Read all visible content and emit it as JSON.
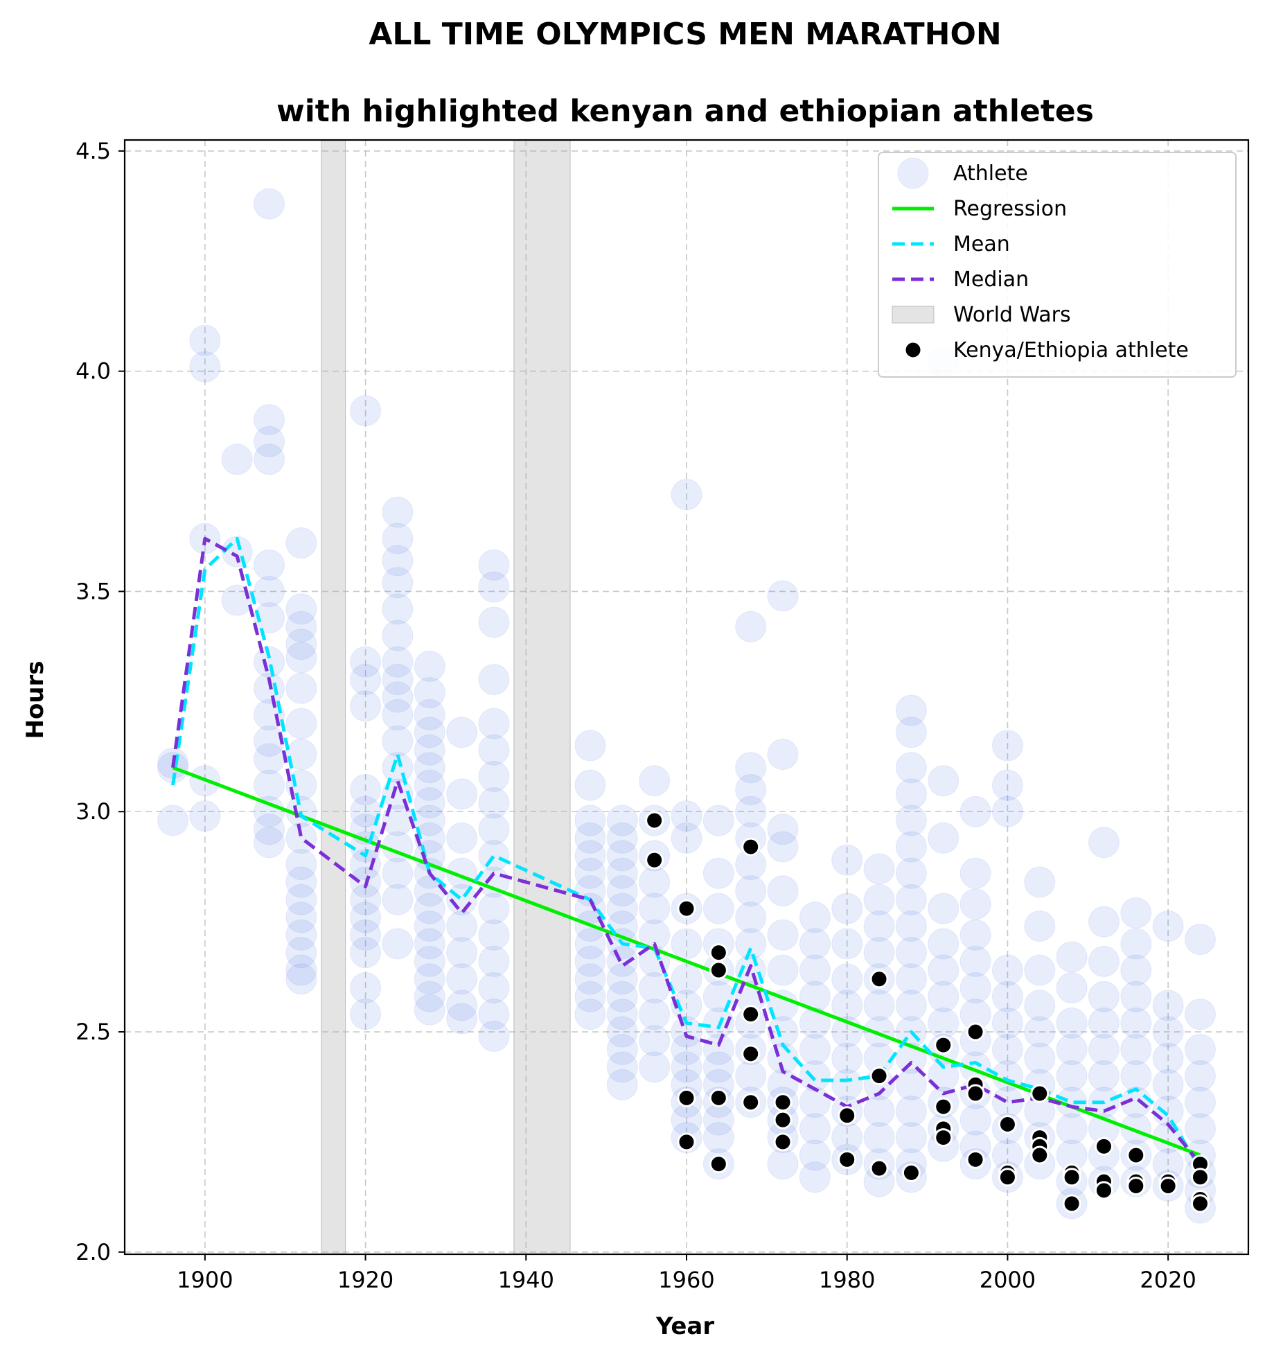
{
  "chart_data": {
    "type": "scatter",
    "title": "ALL TIME OLYMPICS MEN MARATHON",
    "subtitle": "with highlighted kenyan and ethiopian athletes",
    "xlabel": "Year",
    "ylabel": "Hours",
    "xlim": [
      1890,
      2030
    ],
    "ylim": [
      1.995,
      4.525
    ],
    "xticks": [
      1900,
      1920,
      1940,
      1960,
      1980,
      2000,
      2020
    ],
    "yticks": [
      2.0,
      2.5,
      3.0,
      3.5,
      4.0,
      4.5
    ],
    "xtick_labels": [
      "1900",
      "1920",
      "1940",
      "1960",
      "1980",
      "2000",
      "2020"
    ],
    "ytick_labels": [
      "2.0",
      "2.5",
      "3.0",
      "3.5",
      "4.0",
      "4.5"
    ],
    "grid": true,
    "legend_position": "top-right",
    "colors": {
      "athlete": "#4169e1",
      "regression": "#00ee00",
      "mean": "#00e5ff",
      "median": "#7b2fd6",
      "world_wars": "#d9d9d9",
      "kenya_ethiopia": "#000000"
    },
    "legend": [
      {
        "label": "Athlete",
        "kind": "athlete"
      },
      {
        "label": "Regression",
        "kind": "regression"
      },
      {
        "label": "Mean",
        "kind": "mean"
      },
      {
        "label": "Median",
        "kind": "median"
      },
      {
        "label": "World Wars",
        "kind": "world_wars"
      },
      {
        "label": "Kenya/Ethiopia athlete",
        "kind": "kenya_ethiopia"
      }
    ],
    "world_wars": [
      {
        "start": 1914.5,
        "end": 1917.5
      },
      {
        "start": 1938.5,
        "end": 1945.5
      }
    ],
    "regression": {
      "x": [
        1896,
        2024
      ],
      "y": [
        3.1,
        2.22
      ]
    },
    "mean": {
      "x": [
        1896,
        1900,
        1904,
        1908,
        1912,
        1920,
        1924,
        1928,
        1932,
        1936,
        1948,
        1952,
        1956,
        1960,
        1964,
        1968,
        1972,
        1976,
        1980,
        1984,
        1988,
        1992,
        1996,
        2000,
        2004,
        2008,
        2012,
        2016,
        2020,
        2024
      ],
      "y": [
        3.06,
        3.55,
        3.62,
        3.35,
        2.99,
        2.9,
        3.13,
        2.86,
        2.8,
        2.9,
        2.8,
        2.7,
        2.69,
        2.52,
        2.51,
        2.69,
        2.47,
        2.39,
        2.39,
        2.4,
        2.5,
        2.42,
        2.43,
        2.39,
        2.37,
        2.34,
        2.34,
        2.37,
        2.31,
        2.19
      ]
    },
    "median": {
      "x": [
        1896,
        1900,
        1904,
        1908,
        1912,
        1920,
        1924,
        1928,
        1932,
        1936,
        1948,
        1952,
        1956,
        1960,
        1964,
        1968,
        1972,
        1976,
        1980,
        1984,
        1988,
        1992,
        1996,
        2000,
        2004,
        2008,
        2012,
        2016,
        2020,
        2024
      ],
      "y": [
        3.1,
        3.62,
        3.58,
        3.3,
        2.94,
        2.83,
        3.07,
        2.86,
        2.77,
        2.86,
        2.8,
        2.65,
        2.7,
        2.49,
        2.47,
        2.65,
        2.41,
        2.37,
        2.33,
        2.36,
        2.43,
        2.36,
        2.38,
        2.34,
        2.35,
        2.33,
        2.32,
        2.35,
        2.29,
        2.2
      ]
    },
    "athlete_groups": [
      {
        "year": 1896,
        "values": [
          3.11,
          3.1,
          2.98
        ]
      },
      {
        "year": 1900,
        "values": [
          4.07,
          4.01,
          3.62,
          3.07,
          2.99
        ]
      },
      {
        "year": 1904,
        "values": [
          3.8,
          3.59,
          3.48
        ]
      },
      {
        "year": 1908,
        "values": [
          4.38,
          3.89,
          3.84,
          3.8,
          3.56,
          3.5,
          3.44,
          3.34,
          3.28,
          3.22,
          3.16,
          3.12,
          3.06,
          3.0,
          2.96,
          2.93
        ]
      },
      {
        "year": 1912,
        "values": [
          3.61,
          3.46,
          3.42,
          3.38,
          3.35,
          3.28,
          3.2,
          3.13,
          3.06,
          3.0,
          2.94,
          2.88,
          2.84,
          2.8,
          2.76,
          2.72,
          2.68,
          2.64,
          2.62
        ]
      },
      {
        "year": 1920,
        "values": [
          3.91,
          3.34,
          3.3,
          3.24,
          3.05,
          3.0,
          2.96,
          2.92,
          2.88,
          2.84,
          2.8,
          2.76,
          2.72,
          2.68,
          2.6,
          2.54
        ]
      },
      {
        "year": 1924,
        "values": [
          3.68,
          3.62,
          3.57,
          3.52,
          3.46,
          3.4,
          3.34,
          3.3,
          3.26,
          3.22,
          3.16,
          3.1,
          3.04,
          2.98,
          2.92,
          2.86,
          2.8,
          2.7
        ]
      },
      {
        "year": 1928,
        "values": [
          3.33,
          3.27,
          3.22,
          3.18,
          3.14,
          3.1,
          3.06,
          3.02,
          2.98,
          2.94,
          2.9,
          2.86,
          2.82,
          2.78,
          2.74,
          2.7,
          2.66,
          2.62,
          2.58,
          2.55
        ]
      },
      {
        "year": 1932,
        "values": [
          3.18,
          3.04,
          2.94,
          2.86,
          2.8,
          2.74,
          2.68,
          2.62,
          2.56,
          2.53
        ]
      },
      {
        "year": 1936,
        "values": [
          3.56,
          3.51,
          3.43,
          3.3,
          3.2,
          3.14,
          3.08,
          3.02,
          2.96,
          2.9,
          2.84,
          2.78,
          2.72,
          2.66,
          2.6,
          2.54,
          2.49
        ]
      },
      {
        "year": 1948,
        "values": [
          3.15,
          3.06,
          2.98,
          2.94,
          2.9,
          2.86,
          2.82,
          2.78,
          2.74,
          2.7,
          2.66,
          2.62,
          2.58,
          2.54
        ]
      },
      {
        "year": 1952,
        "values": [
          2.98,
          2.94,
          2.9,
          2.86,
          2.82,
          2.78,
          2.74,
          2.7,
          2.66,
          2.62,
          2.58,
          2.54,
          2.5,
          2.46,
          2.42,
          2.38
        ]
      },
      {
        "year": 1956,
        "values": [
          3.07,
          2.98,
          2.9,
          2.84,
          2.78,
          2.72,
          2.66,
          2.6,
          2.54,
          2.48,
          2.42
        ]
      },
      {
        "year": 1960,
        "values": [
          3.72,
          2.99,
          2.94,
          2.78,
          2.7,
          2.62,
          2.56,
          2.5,
          2.46,
          2.42,
          2.38,
          2.34,
          2.3,
          2.26
        ]
      },
      {
        "year": 1964,
        "values": [
          2.98,
          2.86,
          2.78,
          2.7,
          2.64,
          2.58,
          2.52,
          2.46,
          2.42,
          2.38,
          2.34,
          2.3,
          2.26,
          2.2
        ]
      },
      {
        "year": 1968,
        "values": [
          3.42,
          3.1,
          3.05,
          3.0,
          2.94,
          2.88,
          2.82,
          2.76,
          2.7,
          2.64,
          2.58,
          2.52,
          2.46,
          2.4,
          2.34
        ]
      },
      {
        "year": 1972,
        "values": [
          3.49,
          3.13,
          2.96,
          2.92,
          2.82,
          2.72,
          2.64,
          2.56,
          2.5,
          2.44,
          2.38,
          2.34,
          2.3,
          2.26,
          2.2
        ]
      },
      {
        "year": 1976,
        "values": [
          2.76,
          2.7,
          2.64,
          2.58,
          2.52,
          2.46,
          2.4,
          2.34,
          2.28,
          2.22,
          2.17
        ]
      },
      {
        "year": 1980,
        "values": [
          2.89,
          2.78,
          2.7,
          2.62,
          2.56,
          2.5,
          2.44,
          2.38,
          2.32,
          2.26,
          2.21
        ]
      },
      {
        "year": 1984,
        "values": [
          2.87,
          2.8,
          2.74,
          2.68,
          2.62,
          2.56,
          2.5,
          2.44,
          2.38,
          2.32,
          2.26,
          2.2,
          2.16
        ]
      },
      {
        "year": 1988,
        "values": [
          3.23,
          3.18,
          3.1,
          3.04,
          2.98,
          2.92,
          2.86,
          2.8,
          2.74,
          2.68,
          2.62,
          2.56,
          2.5,
          2.44,
          2.38,
          2.32,
          2.26,
          2.2,
          2.17
        ]
      },
      {
        "year": 1992,
        "values": [
          4.02,
          3.07,
          2.94,
          2.78,
          2.7,
          2.64,
          2.58,
          2.52,
          2.46,
          2.4,
          2.34,
          2.28,
          2.24
        ]
      },
      {
        "year": 1996,
        "values": [
          3.0,
          2.86,
          2.79,
          2.72,
          2.66,
          2.6,
          2.54,
          2.48,
          2.42,
          2.36,
          2.3,
          2.24,
          2.2
        ]
      },
      {
        "year": 2000,
        "values": [
          3.15,
          3.06,
          3.0,
          2.64,
          2.58,
          2.52,
          2.46,
          2.4,
          2.34,
          2.28,
          2.22,
          2.17
        ]
      },
      {
        "year": 2004,
        "values": [
          2.84,
          2.74,
          2.64,
          2.56,
          2.5,
          2.44,
          2.38,
          2.32,
          2.26,
          2.2
        ]
      },
      {
        "year": 2008,
        "values": [
          2.67,
          2.6,
          2.52,
          2.46,
          2.4,
          2.34,
          2.28,
          2.22,
          2.16,
          2.11
        ]
      },
      {
        "year": 2012,
        "values": [
          2.93,
          2.75,
          2.66,
          2.58,
          2.52,
          2.46,
          2.4,
          2.34,
          2.28,
          2.22,
          2.16
        ]
      },
      {
        "year": 2016,
        "values": [
          2.77,
          2.7,
          2.64,
          2.58,
          2.52,
          2.46,
          2.4,
          2.34,
          2.28,
          2.22,
          2.16
        ]
      },
      {
        "year": 2020,
        "values": [
          2.74,
          2.56,
          2.5,
          2.44,
          2.38,
          2.32,
          2.26,
          2.2,
          2.15
        ]
      },
      {
        "year": 2024,
        "values": [
          2.71,
          2.54,
          2.46,
          2.4,
          2.34,
          2.28,
          2.22,
          2.18,
          2.14,
          2.1
        ]
      }
    ],
    "kenya_ethiopia": [
      {
        "x": 1956,
        "y": 2.98
      },
      {
        "x": 1956,
        "y": 2.89
      },
      {
        "x": 1960,
        "y": 2.78
      },
      {
        "x": 1960,
        "y": 2.35
      },
      {
        "x": 1960,
        "y": 2.25
      },
      {
        "x": 1964,
        "y": 2.68
      },
      {
        "x": 1964,
        "y": 2.64
      },
      {
        "x": 1964,
        "y": 2.35
      },
      {
        "x": 1964,
        "y": 2.2
      },
      {
        "x": 1968,
        "y": 2.92
      },
      {
        "x": 1968,
        "y": 2.54
      },
      {
        "x": 1968,
        "y": 2.45
      },
      {
        "x": 1968,
        "y": 2.34
      },
      {
        "x": 1972,
        "y": 2.34
      },
      {
        "x": 1972,
        "y": 2.3
      },
      {
        "x": 1972,
        "y": 2.25
      },
      {
        "x": 1980,
        "y": 2.31
      },
      {
        "x": 1980,
        "y": 2.21
      },
      {
        "x": 1984,
        "y": 2.62
      },
      {
        "x": 1984,
        "y": 2.4
      },
      {
        "x": 1984,
        "y": 2.19
      },
      {
        "x": 1988,
        "y": 2.18
      },
      {
        "x": 1992,
        "y": 2.47
      },
      {
        "x": 1992,
        "y": 2.33
      },
      {
        "x": 1992,
        "y": 2.28
      },
      {
        "x": 1992,
        "y": 2.26
      },
      {
        "x": 1996,
        "y": 2.5
      },
      {
        "x": 1996,
        "y": 2.38
      },
      {
        "x": 1996,
        "y": 2.36
      },
      {
        "x": 1996,
        "y": 2.21
      },
      {
        "x": 2000,
        "y": 2.29
      },
      {
        "x": 2000,
        "y": 2.18
      },
      {
        "x": 2000,
        "y": 2.17
      },
      {
        "x": 2004,
        "y": 2.36
      },
      {
        "x": 2004,
        "y": 2.26
      },
      {
        "x": 2004,
        "y": 2.24
      },
      {
        "x": 2004,
        "y": 2.22
      },
      {
        "x": 2008,
        "y": 2.18
      },
      {
        "x": 2008,
        "y": 2.17
      },
      {
        "x": 2008,
        "y": 2.11
      },
      {
        "x": 2012,
        "y": 2.24
      },
      {
        "x": 2012,
        "y": 2.16
      },
      {
        "x": 2012,
        "y": 2.14
      },
      {
        "x": 2016,
        "y": 2.22
      },
      {
        "x": 2016,
        "y": 2.16
      },
      {
        "x": 2016,
        "y": 2.15
      },
      {
        "x": 2020,
        "y": 2.16
      },
      {
        "x": 2020,
        "y": 2.15
      },
      {
        "x": 2024,
        "y": 2.2
      },
      {
        "x": 2024,
        "y": 2.17
      },
      {
        "x": 2024,
        "y": 2.12
      },
      {
        "x": 2024,
        "y": 2.11
      }
    ]
  }
}
